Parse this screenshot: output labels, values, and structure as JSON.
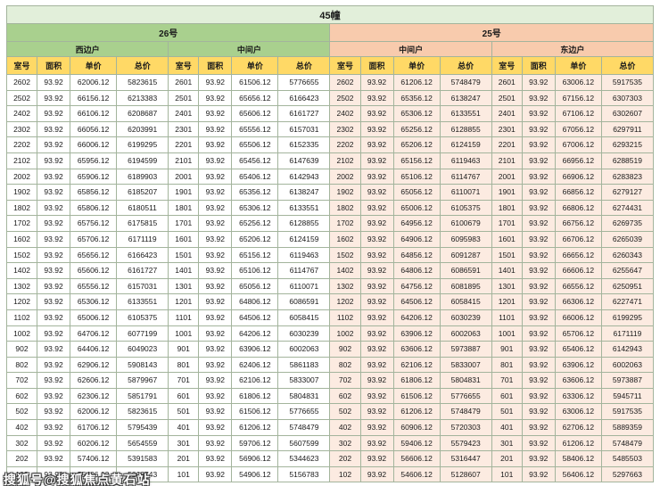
{
  "title": "45幢",
  "buildings": [
    {
      "name": "26号",
      "units": [
        "西边户",
        "中间户"
      ]
    },
    {
      "name": "25号",
      "units": [
        "中间户",
        "东边户"
      ]
    }
  ],
  "column_headers": [
    "室号",
    "面积",
    "单价",
    "总价"
  ],
  "watermark": "搜狐号@搜狐焦点黄石站",
  "colors": {
    "title-bg": "#e2efda",
    "green-bg": "#a9d08e",
    "peach-bg": "#f8cbad",
    "yellow-bg": "#ffd966",
    "right-tint": "#fcebe1",
    "grid-line": "#a3b49c"
  },
  "rows": [
    [
      "2602",
      "93.92",
      "62006.12",
      "5823615",
      "2601",
      "93.92",
      "61506.12",
      "5776655",
      "2602",
      "93.92",
      "61206.12",
      "5748479",
      "2601",
      "93.92",
      "63006.12",
      "5917535"
    ],
    [
      "2502",
      "93.92",
      "66156.12",
      "6213383",
      "2501",
      "93.92",
      "65656.12",
      "6166423",
      "2502",
      "93.92",
      "65356.12",
      "6138247",
      "2501",
      "93.92",
      "67156.12",
      "6307303"
    ],
    [
      "2402",
      "93.92",
      "66106.12",
      "6208687",
      "2401",
      "93.92",
      "65606.12",
      "6161727",
      "2402",
      "93.92",
      "65306.12",
      "6133551",
      "2401",
      "93.92",
      "67106.12",
      "6302607"
    ],
    [
      "2302",
      "93.92",
      "66056.12",
      "6203991",
      "2301",
      "93.92",
      "65556.12",
      "6157031",
      "2302",
      "93.92",
      "65256.12",
      "6128855",
      "2301",
      "93.92",
      "67056.12",
      "6297911"
    ],
    [
      "2202",
      "93.92",
      "66006.12",
      "6199295",
      "2201",
      "93.92",
      "65506.12",
      "6152335",
      "2202",
      "93.92",
      "65206.12",
      "6124159",
      "2201",
      "93.92",
      "67006.12",
      "6293215"
    ],
    [
      "2102",
      "93.92",
      "65956.12",
      "6194599",
      "2101",
      "93.92",
      "65456.12",
      "6147639",
      "2102",
      "93.92",
      "65156.12",
      "6119463",
      "2101",
      "93.92",
      "66956.12",
      "6288519"
    ],
    [
      "2002",
      "93.92",
      "65906.12",
      "6189903",
      "2001",
      "93.92",
      "65406.12",
      "6142943",
      "2002",
      "93.92",
      "65106.12",
      "6114767",
      "2001",
      "93.92",
      "66906.12",
      "6283823"
    ],
    [
      "1902",
      "93.92",
      "65856.12",
      "6185207",
      "1901",
      "93.92",
      "65356.12",
      "6138247",
      "1902",
      "93.92",
      "65056.12",
      "6110071",
      "1901",
      "93.92",
      "66856.12",
      "6279127"
    ],
    [
      "1802",
      "93.92",
      "65806.12",
      "6180511",
      "1801",
      "93.92",
      "65306.12",
      "6133551",
      "1802",
      "93.92",
      "65006.12",
      "6105375",
      "1801",
      "93.92",
      "66806.12",
      "6274431"
    ],
    [
      "1702",
      "93.92",
      "65756.12",
      "6175815",
      "1701",
      "93.92",
      "65256.12",
      "6128855",
      "1702",
      "93.92",
      "64956.12",
      "6100679",
      "1701",
      "93.92",
      "66756.12",
      "6269735"
    ],
    [
      "1602",
      "93.92",
      "65706.12",
      "6171119",
      "1601",
      "93.92",
      "65206.12",
      "6124159",
      "1602",
      "93.92",
      "64906.12",
      "6095983",
      "1601",
      "93.92",
      "66706.12",
      "6265039"
    ],
    [
      "1502",
      "93.92",
      "65656.12",
      "6166423",
      "1501",
      "93.92",
      "65156.12",
      "6119463",
      "1502",
      "93.92",
      "64856.12",
      "6091287",
      "1501",
      "93.92",
      "66656.12",
      "6260343"
    ],
    [
      "1402",
      "93.92",
      "65606.12",
      "6161727",
      "1401",
      "93.92",
      "65106.12",
      "6114767",
      "1402",
      "93.92",
      "64806.12",
      "6086591",
      "1401",
      "93.92",
      "66606.12",
      "6255647"
    ],
    [
      "1302",
      "93.92",
      "65556.12",
      "6157031",
      "1301",
      "93.92",
      "65056.12",
      "6110071",
      "1302",
      "93.92",
      "64756.12",
      "6081895",
      "1301",
      "93.92",
      "66556.12",
      "6250951"
    ],
    [
      "1202",
      "93.92",
      "65306.12",
      "6133551",
      "1201",
      "93.92",
      "64806.12",
      "6086591",
      "1202",
      "93.92",
      "64506.12",
      "6058415",
      "1201",
      "93.92",
      "66306.12",
      "6227471"
    ],
    [
      "1102",
      "93.92",
      "65006.12",
      "6105375",
      "1101",
      "93.92",
      "64506.12",
      "6058415",
      "1102",
      "93.92",
      "64206.12",
      "6030239",
      "1101",
      "93.92",
      "66006.12",
      "6199295"
    ],
    [
      "1002",
      "93.92",
      "64706.12",
      "6077199",
      "1001",
      "93.92",
      "64206.12",
      "6030239",
      "1002",
      "93.92",
      "63906.12",
      "6002063",
      "1001",
      "93.92",
      "65706.12",
      "6171119"
    ],
    [
      "902",
      "93.92",
      "64406.12",
      "6049023",
      "901",
      "93.92",
      "63906.12",
      "6002063",
      "902",
      "93.92",
      "63606.12",
      "5973887",
      "901",
      "93.92",
      "65406.12",
      "6142943"
    ],
    [
      "802",
      "93.92",
      "62906.12",
      "5908143",
      "801",
      "93.92",
      "62406.12",
      "5861183",
      "802",
      "93.92",
      "62106.12",
      "5833007",
      "801",
      "93.92",
      "63906.12",
      "6002063"
    ],
    [
      "702",
      "93.92",
      "62606.12",
      "5879967",
      "701",
      "93.92",
      "62106.12",
      "5833007",
      "702",
      "93.92",
      "61806.12",
      "5804831",
      "701",
      "93.92",
      "63606.12",
      "5973887"
    ],
    [
      "602",
      "93.92",
      "62306.12",
      "5851791",
      "601",
      "93.92",
      "61806.12",
      "5804831",
      "602",
      "93.92",
      "61506.12",
      "5776655",
      "601",
      "93.92",
      "63306.12",
      "5945711"
    ],
    [
      "502",
      "93.92",
      "62006.12",
      "5823615",
      "501",
      "93.92",
      "61506.12",
      "5776655",
      "502",
      "93.92",
      "61206.12",
      "5748479",
      "501",
      "93.92",
      "63006.12",
      "5917535"
    ],
    [
      "402",
      "93.92",
      "61706.12",
      "5795439",
      "401",
      "93.92",
      "61206.12",
      "5748479",
      "402",
      "93.92",
      "60906.12",
      "5720303",
      "401",
      "93.92",
      "62706.12",
      "5889359"
    ],
    [
      "302",
      "93.92",
      "60206.12",
      "5654559",
      "301",
      "93.92",
      "59706.12",
      "5607599",
      "302",
      "93.92",
      "59406.12",
      "5579423",
      "301",
      "93.92",
      "61206.12",
      "5748479"
    ],
    [
      "202",
      "93.92",
      "57406.12",
      "5391583",
      "201",
      "93.92",
      "56906.12",
      "5344623",
      "202",
      "93.92",
      "56606.12",
      "5316447",
      "201",
      "93.92",
      "58406.12",
      "5485503"
    ],
    [
      "102",
      "93.92",
      "55406.12",
      "5203743",
      "101",
      "93.92",
      "54906.12",
      "5156783",
      "102",
      "93.92",
      "54606.12",
      "5128607",
      "101",
      "93.92",
      "56406.12",
      "5297663"
    ]
  ]
}
